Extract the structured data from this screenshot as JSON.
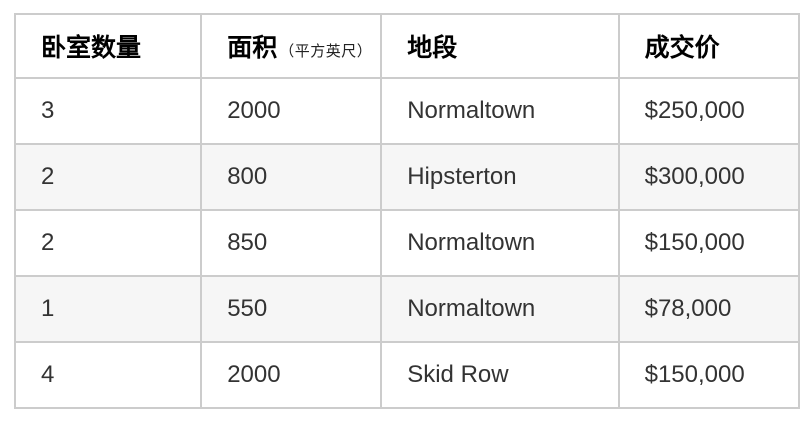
{
  "header": {
    "bedrooms": "卧室数量",
    "area": "面积",
    "area_unit": "（平方英尺）",
    "location": "地段",
    "price": "成交价"
  },
  "chart_data": {
    "type": "table",
    "columns": [
      "卧室数量",
      "面积（平方英尺）",
      "地段",
      "成交价"
    ],
    "rows": [
      [
        "3",
        "2000",
        "Normaltown",
        "$250,000"
      ],
      [
        "2",
        "800",
        "Hipsterton",
        "$300,000"
      ],
      [
        "2",
        "850",
        "Normaltown",
        "$150,000"
      ],
      [
        "1",
        "550",
        "Normaltown",
        "$78,000"
      ],
      [
        "4",
        "2000",
        "Skid Row",
        "$150,000"
      ]
    ]
  },
  "colors": {
    "border": "#cccccc",
    "stripe_row_background": "#f6f6f6",
    "body_text": "#333333",
    "header_text": "#000000"
  }
}
